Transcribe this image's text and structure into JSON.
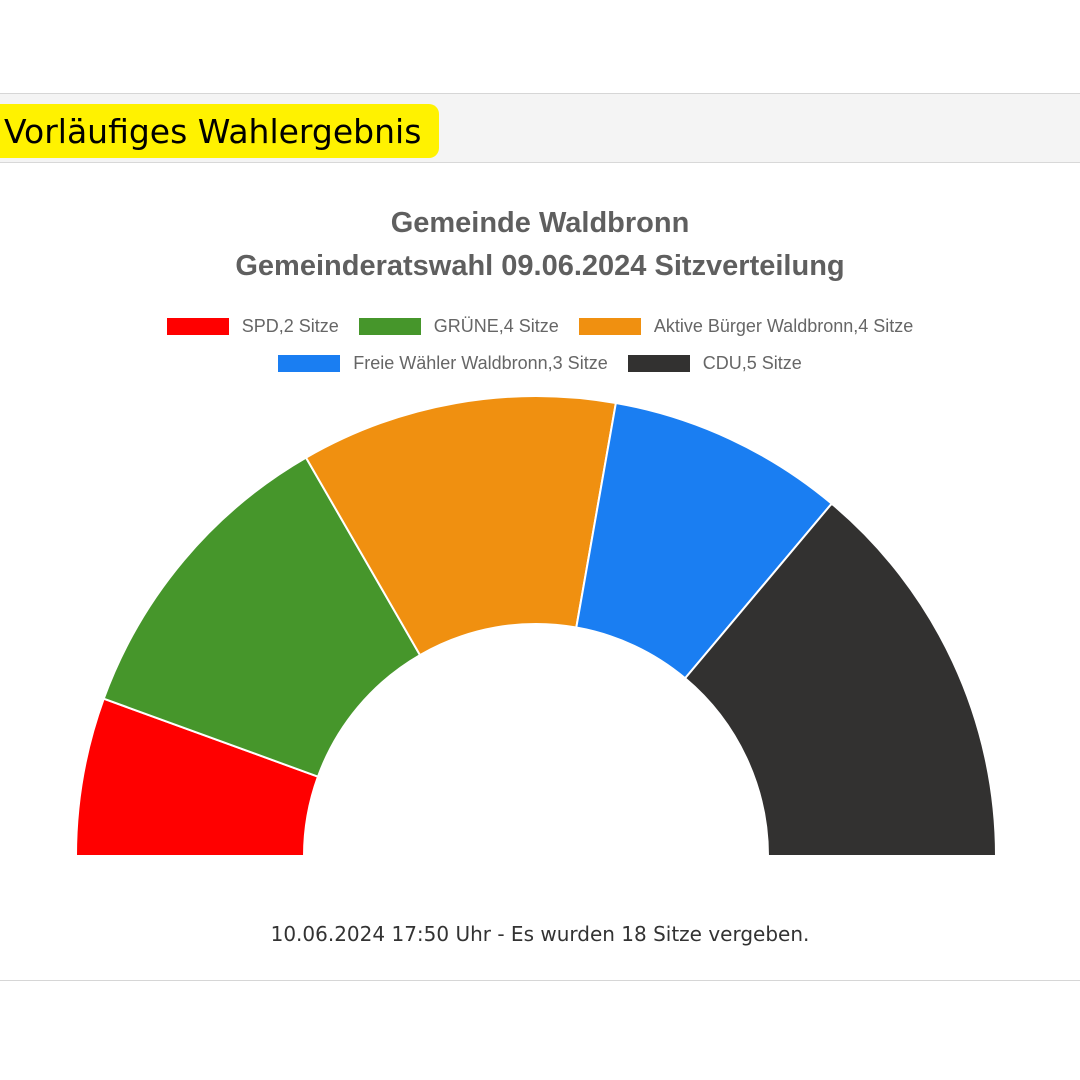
{
  "header": {
    "badge_label": "Vorläufiges Wahlergebnis"
  },
  "chart_data": {
    "type": "pie",
    "variant": "half-donut",
    "title": "Gemeinde Waldbronn",
    "subtitle": "Gemeinderatswahl 09.06.2024 Sitzverteilung",
    "legend_position": "top",
    "total_seats": 18,
    "series": [
      {
        "name": "SPD",
        "label": "SPD,2 Sitze",
        "value": 2,
        "color": "#ff0000"
      },
      {
        "name": "GRÜNE",
        "label": "GRÜNE,4 Sitze",
        "value": 4,
        "color": "#46962b"
      },
      {
        "name": "Aktive Bürger Waldbronn",
        "label": "Aktive Bürger Waldbronn,4 Sitze",
        "value": 4,
        "color": "#f09010"
      },
      {
        "name": "Freie Wähler Waldbronn",
        "label": "Freie Wähler Waldbronn,3 Sitze",
        "value": 3,
        "color": "#1a7ef2"
      },
      {
        "name": "CDU",
        "label": "CDU,5 Sitze",
        "value": 5,
        "color": "#323130"
      }
    ]
  },
  "footer": {
    "note": "10.06.2024 17:50 Uhr - Es wurden 18 Sitze vergeben."
  }
}
